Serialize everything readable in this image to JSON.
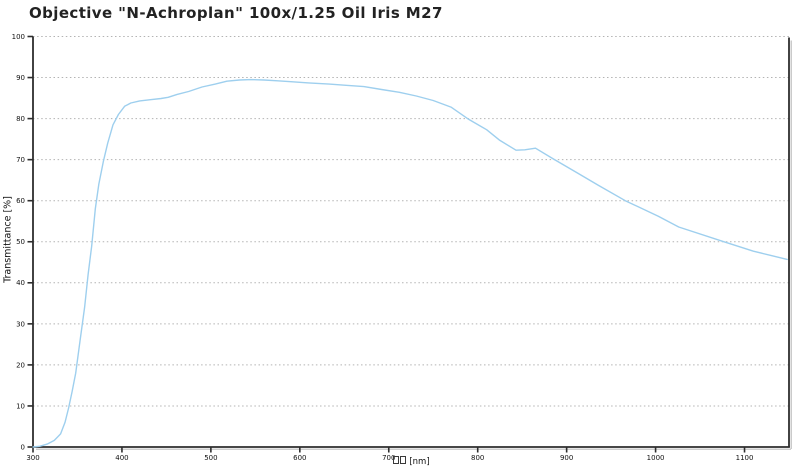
{
  "chart_data": {
    "type": "line",
    "title": "Objective \"N-Achroplan\" 100x/1.25 Oil Iris M27",
    "xlabel": "[nm]",
    "xlabel_missing_glyph_boxes": 2,
    "ylabel": "Transmittance [%]",
    "xlim": [
      300,
      1150
    ],
    "ylim": [
      0,
      100
    ],
    "x_ticks": [
      300,
      400,
      500,
      600,
      700,
      800,
      900,
      1000,
      1100
    ],
    "y_ticks": [
      0,
      10,
      20,
      30,
      40,
      50,
      60,
      70,
      80,
      90,
      100
    ],
    "grid": "horizontal-dotted",
    "legend": "none",
    "series": [
      {
        "name": "transmittance",
        "color": "#9ecfee",
        "x": [
          300,
          308,
          316,
          324,
          331,
          336,
          340,
          344,
          348,
          353,
          358,
          362,
          366,
          370,
          374,
          379,
          384,
          390,
          396,
          403,
          410,
          420,
          432,
          444,
          452,
          462,
          475,
          490,
          505,
          518,
          532,
          545,
          560,
          575,
          590,
          610,
          633,
          652,
          672,
          692,
          712,
          731,
          750,
          770,
          790,
          810,
          825,
          843,
          853,
          865,
          884,
          911,
          936,
          966,
          1003,
          1026,
          1077,
          1110,
          1148
        ],
        "y": [
          0,
          0.2,
          0.7,
          1.6,
          3.2,
          6,
          9.5,
          13.5,
          18,
          26,
          34,
          42,
          49,
          58,
          64,
          69.5,
          74,
          78.5,
          81,
          83,
          83.8,
          84.3,
          84.6,
          84.9,
          85.2,
          85.9,
          86.6,
          87.7,
          88.4,
          89.1,
          89.4,
          89.5,
          89.4,
          89.2,
          89.0,
          88.7,
          88.4,
          88.1,
          87.8,
          87.1,
          86.4,
          85.5,
          84.4,
          82.8,
          79.8,
          77.3,
          74.7,
          72.3,
          72.4,
          72.8,
          70.3,
          66.9,
          63.7,
          60.0,
          56.2,
          53.6,
          50.0,
          47.7,
          45.7
        ]
      }
    ],
    "colors": {
      "curve": "#9ecfee",
      "grid": "#b3b3b3",
      "axis": "#2d2d2d",
      "tick_text": "#111111",
      "shadow": "#bdbdbd",
      "background": "#ffffff"
    }
  }
}
